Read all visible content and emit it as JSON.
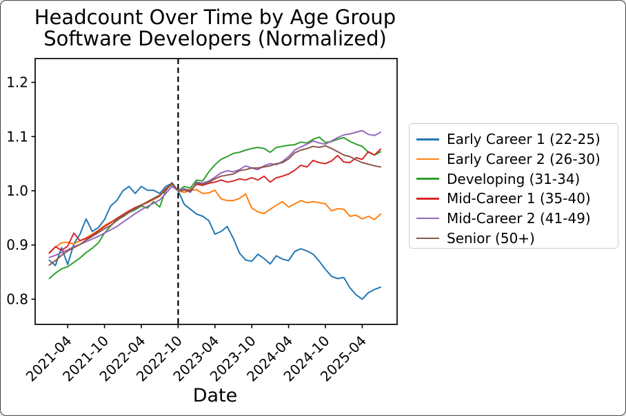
{
  "figure": {
    "title": "Headcount Over Time by Age Group",
    "subtitle": "Software Developers (Normalized)",
    "xlabel": "Date",
    "background": "#ffffff",
    "border_color": "#454545"
  },
  "chart_data": {
    "type": "line",
    "title": "Headcount Over Time by Age Group",
    "subtitle": "Software Developers (Normalized)",
    "xlabel": "Date",
    "ylabel": "",
    "grid": false,
    "legend_position": "center right",
    "ylim": [
      0.753,
      1.244
    ],
    "y_ticks": [
      0.8,
      0.9,
      1.0,
      1.1,
      1.2
    ],
    "x_ticks": [
      "2021-04",
      "2021-10",
      "2022-04",
      "2022-10",
      "2023-04",
      "2023-10",
      "2024-04",
      "2024-10",
      "2025-04"
    ],
    "vline": {
      "x": "2022-10",
      "style": "dashed",
      "color": "#000000"
    },
    "x": [
      "2021-01",
      "2021-02",
      "2021-03",
      "2021-04",
      "2021-05",
      "2021-06",
      "2021-07",
      "2021-08",
      "2021-09",
      "2021-10",
      "2021-11",
      "2021-12",
      "2022-01",
      "2022-02",
      "2022-03",
      "2022-04",
      "2022-05",
      "2022-06",
      "2022-07",
      "2022-08",
      "2022-09",
      "2022-10",
      "2022-11",
      "2022-12",
      "2023-01",
      "2023-02",
      "2023-03",
      "2023-04",
      "2023-05",
      "2023-06",
      "2023-07",
      "2023-08",
      "2023-09",
      "2023-10",
      "2023-11",
      "2023-12",
      "2024-01",
      "2024-02",
      "2024-03",
      "2024-04",
      "2024-05",
      "2024-06",
      "2024-07",
      "2024-08",
      "2024-09",
      "2024-10",
      "2024-11",
      "2024-12",
      "2025-01",
      "2025-02",
      "2025-03",
      "2025-04",
      "2025-05",
      "2025-06",
      "2025-07"
    ],
    "series": [
      {
        "name": "Early Career 1 (22-25)",
        "color": "#1f77b4",
        "values": [
          0.872,
          0.862,
          0.895,
          0.864,
          0.902,
          0.92,
          0.948,
          0.925,
          0.932,
          0.947,
          0.972,
          0.982,
          1.0,
          1.008,
          0.995,
          1.008,
          1.001,
          1.001,
          0.995,
          1.008,
          1.014,
          1.0,
          0.975,
          0.966,
          0.957,
          0.953,
          0.945,
          0.92,
          0.925,
          0.934,
          0.912,
          0.885,
          0.872,
          0.87,
          0.883,
          0.875,
          0.865,
          0.88,
          0.874,
          0.871,
          0.888,
          0.893,
          0.889,
          0.883,
          0.87,
          0.855,
          0.842,
          0.838,
          0.84,
          0.821,
          0.808,
          0.8,
          0.812,
          0.818,
          0.822
        ]
      },
      {
        "name": "Early Career 2 (26-30)",
        "color": "#ff7f0e",
        "values": [
          0.886,
          0.896,
          0.904,
          0.905,
          0.902,
          0.908,
          0.913,
          0.92,
          0.927,
          0.936,
          0.942,
          0.948,
          0.955,
          0.962,
          0.968,
          0.973,
          0.978,
          0.984,
          0.99,
          1.004,
          1.013,
          1.0,
          0.997,
          1.001,
          1.002,
          0.995,
          0.996,
          1.001,
          0.985,
          0.982,
          0.982,
          0.986,
          0.994,
          0.968,
          0.961,
          0.958,
          0.966,
          0.973,
          0.98,
          0.97,
          0.976,
          0.982,
          0.978,
          0.98,
          0.978,
          0.976,
          0.963,
          0.967,
          0.966,
          0.953,
          0.955,
          0.948,
          0.953,
          0.947,
          0.957
        ]
      },
      {
        "name": "Developing (31-34)",
        "color": "#2ca02c",
        "values": [
          0.838,
          0.848,
          0.856,
          0.86,
          0.868,
          0.876,
          0.886,
          0.894,
          0.904,
          0.922,
          0.935,
          0.947,
          0.952,
          0.96,
          0.965,
          0.972,
          0.968,
          0.98,
          0.97,
          1.002,
          1.012,
          1.0,
          1.008,
          1.005,
          1.02,
          1.018,
          1.035,
          1.048,
          1.058,
          1.063,
          1.069,
          1.071,
          1.075,
          1.078,
          1.08,
          1.078,
          1.071,
          1.08,
          1.082,
          1.084,
          1.085,
          1.09,
          1.088,
          1.095,
          1.099,
          1.089,
          1.091,
          1.095,
          1.098,
          1.091,
          1.086,
          1.082,
          1.071,
          1.066,
          1.072
        ]
      },
      {
        "name": "Mid-Career 1 (35-40)",
        "color": "#d62728",
        "values": [
          0.885,
          0.897,
          0.89,
          0.898,
          0.922,
          0.908,
          0.912,
          0.918,
          0.926,
          0.934,
          0.941,
          0.949,
          0.956,
          0.963,
          0.969,
          0.974,
          0.979,
          0.985,
          0.991,
          1.003,
          1.014,
          1.0,
          1.003,
          1.001,
          1.012,
          1.01,
          1.014,
          1.016,
          1.02,
          1.016,
          1.018,
          1.022,
          1.02,
          1.024,
          1.02,
          1.027,
          1.016,
          1.024,
          1.027,
          1.031,
          1.038,
          1.047,
          1.044,
          1.056,
          1.052,
          1.05,
          1.055,
          1.065,
          1.053,
          1.052,
          1.061,
          1.058,
          1.072,
          1.066,
          1.077
        ]
      },
      {
        "name": "Mid-Career 2 (41-49)",
        "color": "#9467bd",
        "values": [
          0.877,
          0.881,
          0.886,
          0.891,
          0.897,
          0.901,
          0.906,
          0.911,
          0.916,
          0.922,
          0.928,
          0.934,
          0.942,
          0.95,
          0.958,
          0.965,
          0.971,
          0.977,
          0.983,
          0.995,
          1.008,
          1.0,
          1.004,
          0.997,
          1.016,
          1.014,
          1.018,
          1.025,
          1.033,
          1.037,
          1.035,
          1.039,
          1.046,
          1.042,
          1.039,
          1.046,
          1.05,
          1.048,
          1.054,
          1.063,
          1.075,
          1.081,
          1.086,
          1.092,
          1.088,
          1.086,
          1.092,
          1.098,
          1.103,
          1.105,
          1.108,
          1.111,
          1.104,
          1.102,
          1.108
        ]
      },
      {
        "name": "Senior (50+)",
        "color": "#8c564b",
        "values": [
          0.863,
          0.871,
          0.881,
          0.889,
          0.895,
          0.901,
          0.909,
          0.916,
          0.923,
          0.93,
          0.936,
          0.945,
          0.953,
          0.961,
          0.967,
          0.973,
          0.98,
          0.986,
          0.992,
          1.0,
          1.015,
          1.0,
          1.001,
          0.999,
          1.014,
          1.012,
          1.016,
          1.022,
          1.027,
          1.029,
          1.031,
          1.037,
          1.039,
          1.042,
          1.042,
          1.044,
          1.046,
          1.05,
          1.052,
          1.059,
          1.07,
          1.075,
          1.078,
          1.082,
          1.08,
          1.083,
          1.078,
          1.072,
          1.066,
          1.063,
          1.057,
          1.052,
          1.049,
          1.046,
          1.044
        ]
      }
    ]
  }
}
